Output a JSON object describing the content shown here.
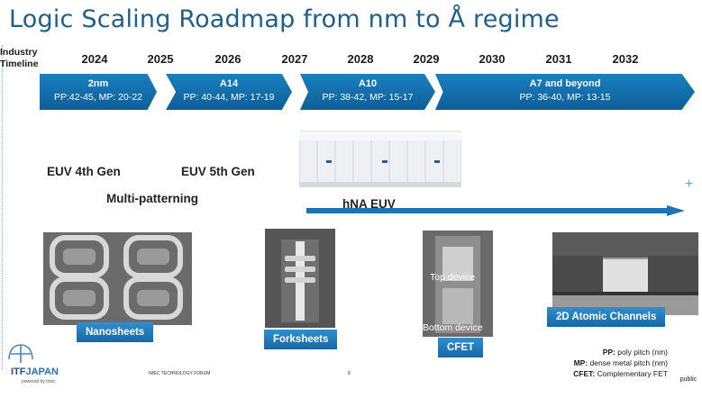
{
  "title": "Logic Scaling Roadmap from nm to Å regime",
  "timeline": {
    "label_line1": "Industry",
    "label_line2": "Timeline",
    "years": [
      "2024",
      "2025",
      "2026",
      "2027",
      "2028",
      "2029",
      "2030",
      "2031",
      "2032"
    ]
  },
  "nodes": [
    {
      "name": "2nm",
      "pitch": "PP:42-45, MP: 20-22"
    },
    {
      "name": "A14",
      "pitch": "PP: 40-44, MP: 17-19"
    },
    {
      "name": "A10",
      "pitch": "PP: 38-42, MP: 15-17"
    },
    {
      "name": "A7 and beyond",
      "pitch": "PP: 36-40, MP: 13-15"
    }
  ],
  "lithography": {
    "euv4": "EUV 4th Gen",
    "euv5": "EUV 5th Gen",
    "multipatterning": "Multi-patterning",
    "hna": "hNA EUV"
  },
  "devices": {
    "nanosheets": "Nanosheets",
    "forksheets": "Forksheets",
    "cfet": "CFET",
    "cfet_top": "Top device",
    "cfet_bottom": "Bottom device",
    "atomic": "2D Atomic Channels"
  },
  "legend": {
    "pp": "PP:",
    "pp_text": " poly pitch (nm)",
    "mp": "MP:",
    "mp_text": " dense metal pitch (nm)",
    "cfet": "CFET:",
    "cfet_text": " Complementary FET"
  },
  "footer": {
    "logo_text": "ITF",
    "logo_text2": "JAPAN",
    "logo_sub": "powered by imec",
    "forum": "IMEC TECHNOLOGY FORUM",
    "page": "8",
    "public": "public"
  },
  "colors": {
    "title": "#1f5f8b",
    "chevron": "#1270b0",
    "caption": "#1f7cc0"
  }
}
